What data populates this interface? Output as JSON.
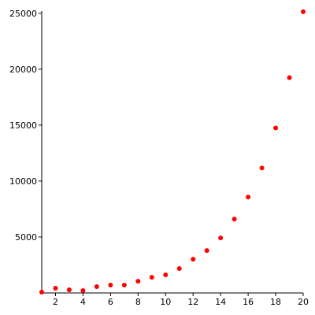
{
  "chart_data": {
    "type": "scatter",
    "x": [
      1,
      2,
      3,
      4,
      5,
      6,
      7,
      8,
      9,
      10,
      11,
      12,
      13,
      14,
      15,
      16,
      17,
      18,
      19,
      20
    ],
    "series": [
      {
        "color": "#ff0000",
        "values": [
          70,
          420,
          280,
          210,
          560,
          700,
          700,
          1050,
          1400,
          1620,
          2180,
          3020,
          3790,
          4920,
          6600,
          8570,
          11170,
          14750,
          19240,
          25140
        ]
      }
    ],
    "xlim": [
      1,
      20
    ],
    "ylim": [
      0,
      25200
    ],
    "xticks": [
      2,
      4,
      6,
      8,
      10,
      12,
      14,
      16,
      18,
      20
    ],
    "yticks": [
      5000,
      10000,
      15000,
      20000,
      25000
    ]
  }
}
